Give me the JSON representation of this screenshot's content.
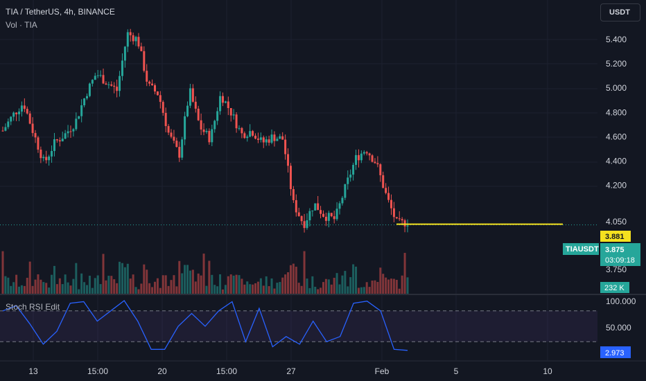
{
  "header": {
    "symbol_line": "TIA / TetherUS, 4h, BINANCE",
    "volume_line": "Vol · TIA",
    "stoch_line": "Stoch RSI Edit",
    "currency_button": "USDT"
  },
  "colors": {
    "up": "#26a69a",
    "down": "#ef5350",
    "highlight": "#f5e11f",
    "stoch": "#2962ff"
  },
  "chart_data": [
    {
      "type": "candlestick",
      "title": "TIA / TetherUS, 4h, BINANCE",
      "y_axis_ticks": [
        "5.400",
        "5.200",
        "5.000",
        "4.800",
        "4.600",
        "4.400",
        "4.200",
        "4.050",
        "3.750"
      ],
      "x_axis_ticks": [
        "13",
        "15:00",
        "20",
        "15:00",
        "27",
        "Feb",
        "5",
        "10"
      ],
      "ylim": [
        3.72,
        5.5
      ],
      "close_price_path": [
        4.65,
        4.78,
        4.88,
        4.62,
        4.38,
        4.55,
        4.62,
        4.72,
        4.95,
        5.12,
        5.05,
        4.98,
        5.45,
        5.4,
        5.02,
        4.95,
        4.62,
        4.45,
        4.98,
        4.68,
        4.58,
        4.95,
        4.8,
        4.62,
        4.65,
        4.55,
        4.6,
        4.58,
        4.05,
        3.88,
        4.05,
        3.95,
        3.92,
        4.18,
        4.42,
        4.5,
        4.38,
        4.1,
        3.88,
        3.9
      ],
      "last_price": "3.875",
      "price_label": "TIAUSDT",
      "countdown": "03:09:18",
      "marked_price": "3.881"
    },
    {
      "type": "bar",
      "title": "Vol · TIA",
      "last_value_label": "232 K"
    },
    {
      "type": "line",
      "title": "Stoch RSI",
      "y_axis_ticks": [
        "100.000",
        "50.000"
      ],
      "ylim": [
        0,
        100
      ],
      "series": [
        {
          "name": "Stoch RSI",
          "values": [
            80,
            90,
            55,
            15,
            40,
            95,
            98,
            60,
            80,
            100,
            60,
            5,
            5,
            50,
            75,
            50,
            80,
            98,
            20,
            85,
            10,
            30,
            15,
            60,
            20,
            30,
            95,
            99,
            80,
            5,
            2.973
          ]
        }
      ],
      "current_value": "2.973"
    }
  ]
}
